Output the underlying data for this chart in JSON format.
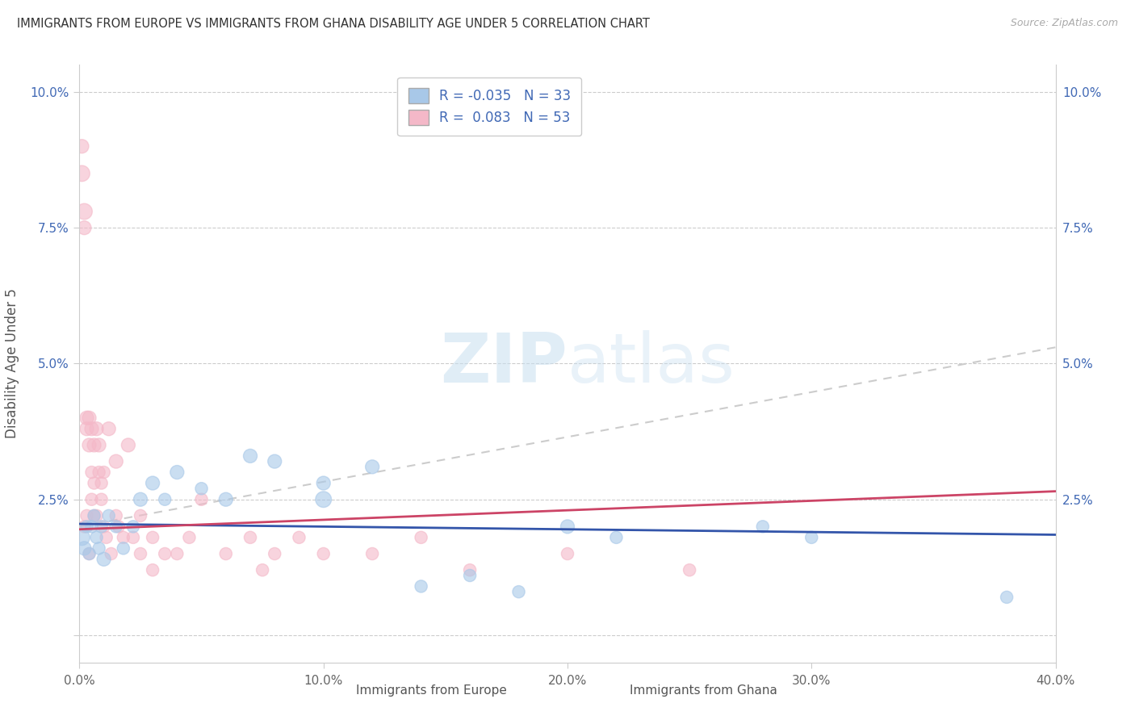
{
  "title": "IMMIGRANTS FROM EUROPE VS IMMIGRANTS FROM GHANA DISABILITY AGE UNDER 5 CORRELATION CHART",
  "source": "Source: ZipAtlas.com",
  "xlabel_europe": "Immigrants from Europe",
  "xlabel_ghana": "Immigrants from Ghana",
  "ylabel": "Disability Age Under 5",
  "xlim": [
    0.0,
    0.4
  ],
  "ylim": [
    -0.005,
    0.105
  ],
  "yticks": [
    0.0,
    0.025,
    0.05,
    0.075,
    0.1
  ],
  "ytick_labels": [
    "",
    "2.5%",
    "5.0%",
    "7.5%",
    "10.0%"
  ],
  "xticks": [
    0.0,
    0.1,
    0.2,
    0.3,
    0.4
  ],
  "xtick_labels": [
    "0.0%",
    "10.0%",
    "20.0%",
    "30.0%",
    "40.0%"
  ],
  "R_europe": -0.035,
  "N_europe": 33,
  "R_ghana": 0.083,
  "N_ghana": 53,
  "color_europe": "#a8c8e8",
  "color_ghana": "#f4b8c8",
  "trendline_color_europe": "#3355aa",
  "trendline_color_ghana": "#cc4466",
  "watermark_color": "#ddeeff",
  "europe_x": [
    0.001,
    0.002,
    0.003,
    0.004,
    0.005,
    0.006,
    0.007,
    0.008,
    0.009,
    0.01,
    0.012,
    0.015,
    0.018,
    0.022,
    0.025,
    0.03,
    0.035,
    0.04,
    0.05,
    0.06,
    0.07,
    0.08,
    0.1,
    0.1,
    0.12,
    0.14,
    0.16,
    0.18,
    0.2,
    0.22,
    0.28,
    0.3,
    0.38
  ],
  "europe_y": [
    0.018,
    0.016,
    0.02,
    0.015,
    0.02,
    0.022,
    0.018,
    0.016,
    0.02,
    0.014,
    0.022,
    0.02,
    0.016,
    0.02,
    0.025,
    0.028,
    0.025,
    0.03,
    0.027,
    0.025,
    0.033,
    0.032,
    0.025,
    0.028,
    0.031,
    0.009,
    0.011,
    0.008,
    0.02,
    0.018,
    0.02,
    0.018,
    0.007
  ],
  "ghana_x": [
    0.001,
    0.001,
    0.002,
    0.002,
    0.002,
    0.003,
    0.003,
    0.003,
    0.004,
    0.004,
    0.004,
    0.005,
    0.005,
    0.005,
    0.006,
    0.006,
    0.006,
    0.007,
    0.007,
    0.008,
    0.008,
    0.009,
    0.009,
    0.01,
    0.01,
    0.011,
    0.012,
    0.013,
    0.015,
    0.015,
    0.016,
    0.018,
    0.02,
    0.022,
    0.025,
    0.025,
    0.03,
    0.03,
    0.035,
    0.04,
    0.045,
    0.05,
    0.06,
    0.07,
    0.075,
    0.08,
    0.09,
    0.1,
    0.12,
    0.14,
    0.16,
    0.2,
    0.25
  ],
  "ghana_y": [
    0.085,
    0.09,
    0.078,
    0.075,
    0.02,
    0.04,
    0.038,
    0.022,
    0.04,
    0.035,
    0.015,
    0.038,
    0.03,
    0.025,
    0.035,
    0.028,
    0.022,
    0.038,
    0.022,
    0.035,
    0.03,
    0.028,
    0.025,
    0.03,
    0.02,
    0.018,
    0.038,
    0.015,
    0.032,
    0.022,
    0.02,
    0.018,
    0.035,
    0.018,
    0.022,
    0.015,
    0.018,
    0.012,
    0.015,
    0.015,
    0.018,
    0.025,
    0.015,
    0.018,
    0.012,
    0.015,
    0.018,
    0.015,
    0.015,
    0.018,
    0.012,
    0.015,
    0.012
  ],
  "europe_sizes": [
    200,
    150,
    120,
    120,
    120,
    120,
    120,
    120,
    120,
    150,
    120,
    120,
    120,
    120,
    150,
    150,
    120,
    150,
    120,
    150,
    150,
    150,
    200,
    150,
    150,
    120,
    120,
    120,
    150,
    120,
    120,
    120,
    120
  ],
  "ghana_sizes": [
    200,
    150,
    200,
    150,
    120,
    150,
    150,
    120,
    150,
    150,
    120,
    150,
    120,
    120,
    150,
    120,
    120,
    150,
    120,
    150,
    120,
    120,
    120,
    120,
    120,
    120,
    150,
    120,
    150,
    120,
    120,
    120,
    150,
    120,
    120,
    120,
    120,
    120,
    120,
    120,
    120,
    120,
    120,
    120,
    120,
    120,
    120,
    120,
    120,
    120,
    120,
    120,
    120
  ],
  "europe_trend": [
    0.0205,
    0.0185
  ],
  "ghana_trend": [
    0.0195,
    0.0265
  ],
  "dash_trend": [
    0.02,
    0.053
  ]
}
